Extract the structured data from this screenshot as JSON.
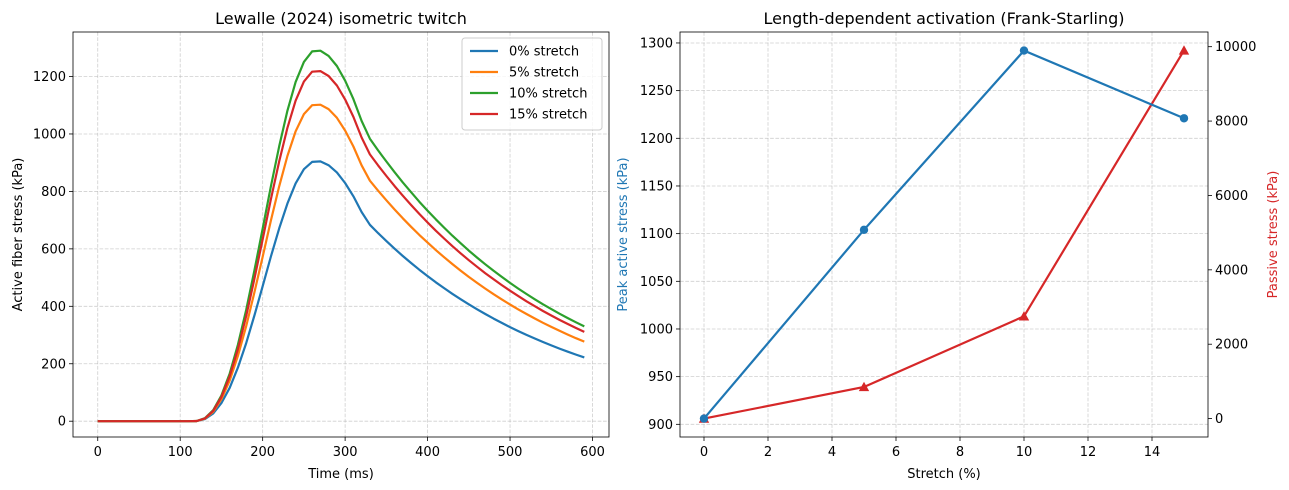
{
  "chart_data": [
    {
      "type": "line",
      "title": "Lewalle (2024) isometric twitch",
      "xlabel": "Time (ms)",
      "ylabel": "Active fiber stress (kPa)",
      "xlim": [
        -30,
        620
      ],
      "ylim": [
        -55,
        1355
      ],
      "xticks": [
        0,
        100,
        200,
        300,
        400,
        500,
        600
      ],
      "yticks": [
        0,
        200,
        400,
        600,
        800,
        1000,
        1200
      ],
      "grid": true,
      "legend": "top-right",
      "x": [
        0,
        10,
        20,
        30,
        40,
        50,
        60,
        70,
        80,
        90,
        100,
        110,
        120,
        130,
        140,
        150,
        160,
        170,
        180,
        190,
        200,
        210,
        220,
        230,
        240,
        250,
        260,
        270,
        280,
        290,
        300,
        310,
        320,
        330,
        340,
        350,
        360,
        370,
        380,
        390,
        400,
        410,
        420,
        430,
        440,
        450,
        460,
        470,
        480,
        490,
        500,
        510,
        520,
        530,
        540,
        550,
        560,
        570,
        580,
        590
      ],
      "series": [
        {
          "name": "0% stretch",
          "color": "#1f77b4",
          "peak": 906,
          "end": 222
        },
        {
          "name": "5% stretch",
          "color": "#ff7f0e",
          "peak": 1104,
          "end": 277
        },
        {
          "name": "10% stretch",
          "color": "#2ca02c",
          "peak": 1292,
          "end": 330
        },
        {
          "name": "15% stretch",
          "color": "#d62728",
          "peak": 1221,
          "end": 311
        }
      ]
    },
    {
      "type": "line",
      "title": "Length-dependent activation (Frank-Starling)",
      "xlabel": "Stretch (%)",
      "ylabel": "Peak active stress (kPa)",
      "y2label": "Passive stress (kPa)",
      "xlim": [
        -0.75,
        15.75
      ],
      "ylim": [
        886.7,
        1311.5
      ],
      "y2lim": [
        -495,
        10395
      ],
      "xticks": [
        0,
        2,
        4,
        6,
        8,
        10,
        12,
        14
      ],
      "yticks": [
        900,
        950,
        1000,
        1050,
        1100,
        1150,
        1200,
        1250,
        1300
      ],
      "y2ticks": [
        0,
        2000,
        4000,
        6000,
        8000,
        10000
      ],
      "grid": true,
      "x": [
        0,
        5,
        10,
        15
      ],
      "series": [
        {
          "name": "Peak active stress",
          "axis": "left",
          "color": "#1f77b4",
          "marker": "circle",
          "values": [
            906,
            1104,
            1292,
            1221
          ]
        },
        {
          "name": "Passive stress",
          "axis": "right",
          "color": "#d62728",
          "marker": "triangle",
          "values": [
            0,
            850,
            2750,
            9900
          ]
        }
      ]
    }
  ]
}
